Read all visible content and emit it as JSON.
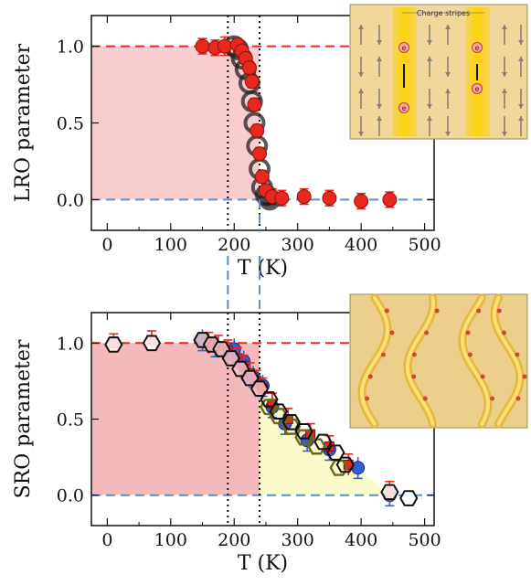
{
  "chart_data": [
    {
      "panel": "top",
      "type": "scatter",
      "xlabel": "T (K)",
      "ylabel": "LRO parameter",
      "xlim": [
        -25,
        515
      ],
      "ylim": [
        -0.2,
        1.2
      ],
      "xticks": [
        0,
        100,
        200,
        300,
        400,
        500
      ],
      "yticks": [
        0.0,
        0.5,
        1.0
      ],
      "grid": false,
      "reference_lines": {
        "vertical_dotted": [
          190,
          240
        ],
        "horizontal_dashed": [
          0.0,
          1.0
        ]
      },
      "shaded_regions": [
        {
          "x": [
            -25,
            240
          ],
          "y": [
            0,
            1.0
          ],
          "color": "#f8c6c8"
        }
      ],
      "colors": {
        "red": "#e8281e",
        "black": "#111111",
        "errorbar": "#e8281e",
        "dashed": "#5b8fd0",
        "shade": "#f8c6c8"
      },
      "series": [
        {
          "marker": "red-circle",
          "x": [
            150,
            170,
            185,
            205,
            212,
            218,
            224,
            228,
            232,
            236,
            240,
            244,
            250,
            260,
            275,
            310,
            350,
            400,
            445
          ],
          "y": [
            1.0,
            0.99,
            1.0,
            1.01,
            0.97,
            0.92,
            0.86,
            0.77,
            0.62,
            0.45,
            0.3,
            0.15,
            0.06,
            0.02,
            0.01,
            0.02,
            0.01,
            -0.01,
            0.0
          ],
          "err": [
            0.05,
            0.05,
            0.06,
            0.04,
            0.04,
            0.04,
            0.04,
            0.04,
            0.04,
            0.04,
            0.04,
            0.04,
            0.04,
            0.05,
            0.05,
            0.05,
            0.05,
            0.05,
            0.05
          ]
        },
        {
          "marker": "black-open-circle",
          "x": [
            200,
            206,
            212,
            218,
            224,
            228,
            232,
            236,
            240,
            244,
            250,
            256
          ],
          "y": [
            1.0,
            0.98,
            0.92,
            0.85,
            0.76,
            0.64,
            0.5,
            0.35,
            0.2,
            0.08,
            0.03,
            0.0
          ]
        }
      ]
    },
    {
      "panel": "bottom",
      "type": "scatter",
      "xlabel": "T (K)",
      "ylabel": "SRO parameter",
      "xlim": [
        -25,
        515
      ],
      "ylim": [
        -0.2,
        1.2
      ],
      "xticks": [
        0,
        100,
        200,
        300,
        400,
        500
      ],
      "yticks": [
        0.0,
        0.5,
        1.0
      ],
      "grid": false,
      "reference_lines": {
        "vertical_dotted": [
          190,
          240
        ],
        "horizontal_dashed": [
          0.0,
          1.0
        ]
      },
      "shaded_regions": [
        {
          "x": [
            -25,
            240
          ],
          "y": [
            0,
            1.0
          ],
          "color": "#f3b1b4"
        },
        {
          "x": [
            240,
            450
          ],
          "y_top_from": [
            [
              240,
              0.72
            ],
            [
              300,
              0.45
            ],
            [
              400,
              0.15
            ],
            [
              450,
              0.0
            ]
          ],
          "color": "#fafac8"
        }
      ],
      "colors": {
        "red": "#e8281e",
        "blue": "#2f5fd0",
        "olive": "#6a6a1a",
        "purple": "#7a3ab0",
        "black": "#111111",
        "shade_red": "#f3b1b4",
        "shade_yellow": "#fafac8"
      },
      "series": [
        {
          "marker": "red-square-with-errorbars",
          "x": [
            10,
            70,
            160,
            175,
            190,
            205,
            215,
            225,
            235,
            245,
            260,
            285,
            320,
            350,
            380,
            445
          ],
          "y": [
            1.0,
            1.02,
            1.0,
            0.98,
            0.95,
            0.9,
            0.85,
            0.8,
            0.75,
            0.7,
            0.6,
            0.5,
            0.4,
            0.32,
            0.2,
            0.02
          ],
          "err": [
            0.06,
            0.06,
            0.07,
            0.07,
            0.07,
            0.07,
            0.07,
            0.07,
            0.07,
            0.07,
            0.07,
            0.07,
            0.07,
            0.07,
            0.07,
            0.07
          ]
        },
        {
          "marker": "blue-circle",
          "x": [
            150,
            170,
            200,
            215,
            230,
            245,
            260,
            280,
            315,
            350,
            395,
            445
          ],
          "y": [
            1.02,
            0.98,
            0.96,
            0.88,
            0.78,
            0.72,
            0.58,
            0.47,
            0.36,
            0.3,
            0.18,
            0.0
          ]
        },
        {
          "marker": "black-open-hexagon",
          "x": [
            10,
            70,
            150,
            165,
            180,
            195,
            210,
            225,
            240,
            255,
            270,
            290,
            310,
            340,
            360,
            375,
            445,
            475
          ],
          "y": [
            0.99,
            1.0,
            1.02,
            0.99,
            0.96,
            0.9,
            0.83,
            0.77,
            0.7,
            0.63,
            0.55,
            0.48,
            0.42,
            0.35,
            0.28,
            0.2,
            0.02,
            -0.02
          ]
        },
        {
          "marker": "olive-open-hexagon",
          "x": [
            255,
            270,
            290,
            310,
            330,
            365
          ],
          "y": [
            0.58,
            0.52,
            0.45,
            0.38,
            0.32,
            0.18
          ]
        },
        {
          "marker": "purple-filled-circle",
          "x": [
            190,
            205,
            220
          ],
          "y": [
            0.92,
            0.88,
            0.78
          ]
        }
      ]
    }
  ],
  "insets": {
    "top": {
      "label": "Charge stripes",
      "electron_glyph": "e"
    }
  }
}
